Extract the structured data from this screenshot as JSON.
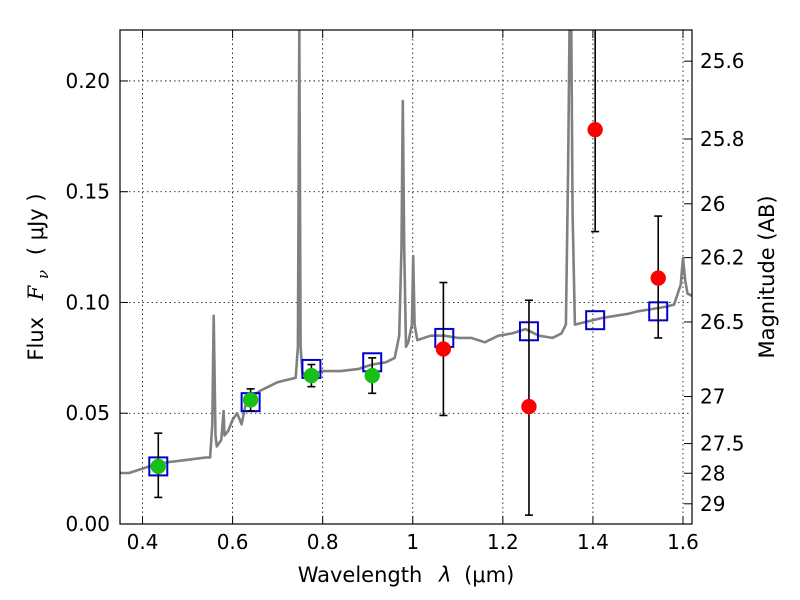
{
  "chart_data": {
    "type": "scatter",
    "title": "",
    "xlabel_text": "Wavelength",
    "xlabel_symbol": "λ",
    "xlabel_unit": "(μm)",
    "ylabel_text": "Flux",
    "ylabel_symbol_main": "F",
    "ylabel_symbol_sub": "ν",
    "ylabel_unit": "( μJy )",
    "y2label": "Magnitude (AB)",
    "xlim": [
      0.35,
      1.62
    ],
    "ylim": [
      0.0,
      0.223
    ],
    "grid": true,
    "x_ticks": [
      0.4,
      0.6,
      0.8,
      1.0,
      1.2,
      1.4,
      1.6
    ],
    "x_tick_labels": [
      "0.4",
      "0.6",
      "0.8",
      "1",
      "1.2",
      "1.4",
      "1.6"
    ],
    "y_ticks": [
      0.0,
      0.05,
      0.1,
      0.15,
      0.2
    ],
    "y_tick_labels": [
      "0.00",
      "0.05",
      "0.10",
      "0.15",
      "0.20"
    ],
    "mag_ticks": [
      "25.6",
      "25.8",
      "26",
      "26.2",
      "26.5",
      "27",
      "27.5",
      "28",
      "29"
    ],
    "colors": {
      "spectrum": "#808080",
      "model_squares": "#0000cc",
      "green_points": "#16c016",
      "red_points": "#ff0000",
      "errorbar": "#000000"
    },
    "series": [
      {
        "kind": "spectrum",
        "points": [
          [
            0.35,
            0.023
          ],
          [
            0.37,
            0.023
          ],
          [
            0.4,
            0.025
          ],
          [
            0.43,
            0.027
          ],
          [
            0.46,
            0.028
          ],
          [
            0.5,
            0.029
          ],
          [
            0.54,
            0.03
          ],
          [
            0.55,
            0.03
          ],
          [
            0.555,
            0.045
          ],
          [
            0.558,
            0.094
          ],
          [
            0.562,
            0.04
          ],
          [
            0.565,
            0.035
          ],
          [
            0.575,
            0.038
          ],
          [
            0.58,
            0.051
          ],
          [
            0.582,
            0.04
          ],
          [
            0.59,
            0.042
          ],
          [
            0.6,
            0.047
          ],
          [
            0.61,
            0.05
          ],
          [
            0.62,
            0.045
          ],
          [
            0.63,
            0.055
          ],
          [
            0.64,
            0.057
          ],
          [
            0.66,
            0.06
          ],
          [
            0.7,
            0.064
          ],
          [
            0.72,
            0.065
          ],
          [
            0.74,
            0.066
          ],
          [
            0.745,
            0.08
          ],
          [
            0.748,
            0.223
          ],
          [
            0.751,
            0.08
          ],
          [
            0.755,
            0.068
          ],
          [
            0.78,
            0.068
          ],
          [
            0.8,
            0.069
          ],
          [
            0.84,
            0.069
          ],
          [
            0.88,
            0.07
          ],
          [
            0.91,
            0.072
          ],
          [
            0.94,
            0.073
          ],
          [
            0.96,
            0.075
          ],
          [
            0.97,
            0.085
          ],
          [
            0.975,
            0.125
          ],
          [
            0.978,
            0.191
          ],
          [
            0.981,
            0.125
          ],
          [
            0.985,
            0.08
          ],
          [
            0.99,
            0.082
          ],
          [
            0.998,
            0.09
          ],
          [
            1.001,
            0.121
          ],
          [
            1.004,
            0.09
          ],
          [
            1.01,
            0.083
          ],
          [
            1.04,
            0.085
          ],
          [
            1.07,
            0.085
          ],
          [
            1.1,
            0.084
          ],
          [
            1.13,
            0.084
          ],
          [
            1.16,
            0.082
          ],
          [
            1.19,
            0.085
          ],
          [
            1.22,
            0.086
          ],
          [
            1.25,
            0.088
          ],
          [
            1.28,
            0.085
          ],
          [
            1.31,
            0.084
          ],
          [
            1.33,
            0.086
          ],
          [
            1.34,
            0.09
          ],
          [
            1.345,
            0.16
          ],
          [
            1.348,
            0.223
          ],
          [
            1.352,
            0.223
          ],
          [
            1.355,
            0.14
          ],
          [
            1.36,
            0.09
          ],
          [
            1.38,
            0.091
          ],
          [
            1.4,
            0.092
          ],
          [
            1.42,
            0.093
          ],
          [
            1.45,
            0.094
          ],
          [
            1.48,
            0.095
          ],
          [
            1.5,
            0.096
          ],
          [
            1.53,
            0.097
          ],
          [
            1.56,
            0.098
          ],
          [
            1.58,
            0.099
          ],
          [
            1.595,
            0.108
          ],
          [
            1.6,
            0.12
          ],
          [
            1.605,
            0.11
          ],
          [
            1.61,
            0.104
          ],
          [
            1.62,
            0.103
          ]
        ]
      },
      {
        "kind": "squares",
        "points": [
          [
            0.435,
            0.026
          ],
          [
            0.64,
            0.055
          ],
          [
            0.775,
            0.07
          ],
          [
            0.91,
            0.073
          ],
          [
            1.07,
            0.084
          ],
          [
            1.258,
            0.087
          ],
          [
            1.405,
            0.092
          ],
          [
            1.545,
            0.096
          ]
        ]
      },
      {
        "kind": "green",
        "points": [
          {
            "x": 0.435,
            "y": 0.026,
            "lo": 0.012,
            "hi": 0.041
          },
          {
            "x": 0.64,
            "y": 0.056,
            "lo": 0.051,
            "hi": 0.061
          },
          {
            "x": 0.775,
            "y": 0.067,
            "lo": 0.062,
            "hi": 0.072
          },
          {
            "x": 0.91,
            "y": 0.067,
            "lo": 0.059,
            "hi": 0.075
          }
        ]
      },
      {
        "kind": "red",
        "points": [
          {
            "x": 1.068,
            "y": 0.079,
            "lo": 0.049,
            "hi": 0.109
          },
          {
            "x": 1.258,
            "y": 0.053,
            "lo": 0.004,
            "hi": 0.101
          },
          {
            "x": 1.405,
            "y": 0.178,
            "lo": 0.132,
            "hi": 0.223
          },
          {
            "x": 1.545,
            "y": 0.111,
            "lo": 0.084,
            "hi": 0.139
          }
        ]
      }
    ]
  }
}
